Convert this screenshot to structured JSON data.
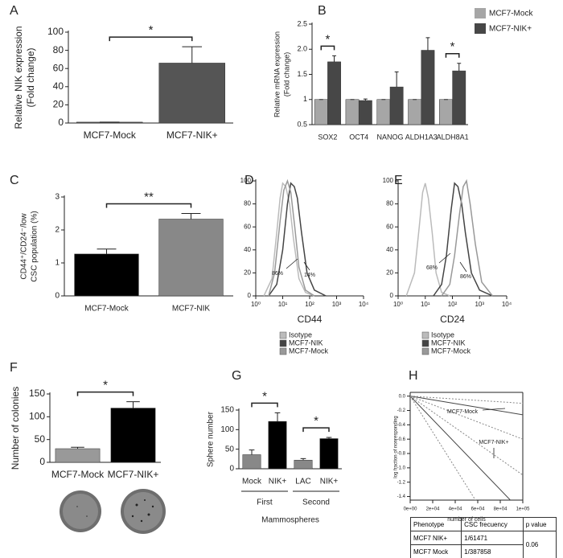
{
  "chart_data": [
    {
      "panel": "A",
      "type": "bar",
      "ylabel": [
        "Relative NIK expression",
        "(Fold change)"
      ],
      "categories": [
        "MCF7-Mock",
        "MCF7-NIK+"
      ],
      "series": [
        {
          "colors": [
            "#555555",
            "#555555"
          ],
          "values": [
            1,
            66
          ],
          "errors": [
            0,
            18
          ]
        }
      ],
      "ylim": [
        0,
        100
      ],
      "yticks": [
        0,
        20,
        40,
        60,
        80,
        100
      ],
      "annotations": [
        {
          "text": "*",
          "categories": [
            0,
            1
          ]
        }
      ]
    },
    {
      "panel": "B",
      "type": "bar",
      "ylabel": [
        "Relative mRNA expression",
        "(Fold change)"
      ],
      "categories": [
        "SOX2",
        "OCT4",
        "NANOG",
        "ALDH1A3",
        "ALDH8A1"
      ],
      "series": [
        {
          "name": "MCF7-Mock",
          "color": "#a6a6a6",
          "values": [
            1,
            1,
            1,
            1,
            1
          ],
          "errors": [
            0,
            0,
            0,
            0,
            0
          ]
        },
        {
          "name": "MCF7-NIK+",
          "color": "#474747",
          "values": [
            1.75,
            0.98,
            1.25,
            1.98,
            1.57
          ],
          "errors": [
            0.12,
            0.03,
            0.3,
            0.25,
            0.15
          ]
        }
      ],
      "ylim": [
        0.5,
        2.5
      ],
      "yticks": [
        0.5,
        1,
        1.5,
        {
          "value": 2,
          "label": "2.0"
        },
        2.5
      ],
      "annotations": [
        {
          "text": "*",
          "category": 0
        },
        {
          "text": "*",
          "category": 4
        }
      ]
    },
    {
      "panel": "C",
      "type": "bar",
      "ylabel": [
        "CD44⁺/CD24⁻/low",
        "CSC population (%)"
      ],
      "categories": [
        "MCF7-Mock",
        "MCF7-NIK"
      ],
      "series": [
        {
          "colors": [
            "#000000",
            "#888888"
          ],
          "values": [
            1.27,
            2.33
          ],
          "errors": [
            0.15,
            0.17
          ]
        }
      ],
      "ylim": [
        0,
        3
      ],
      "yticks": [
        0,
        1,
        2,
        3
      ],
      "annotations": [
        {
          "text": "**",
          "categories": [
            0,
            1
          ]
        }
      ]
    },
    {
      "panel": "D",
      "type": "line",
      "xscale": "log",
      "xlabel": "CD44",
      "series": [
        {
          "name": "Isotype",
          "color": "#bbbbbb",
          "x": [
            2,
            4,
            6,
            8,
            10,
            13,
            18,
            25,
            40,
            70,
            150
          ],
          "values": [
            0,
            15,
            55,
            85,
            98,
            95,
            80,
            50,
            15,
            3,
            0
          ]
        },
        {
          "name": "MCF7-NIK",
          "color": "#444444",
          "x": [
            3,
            6,
            10,
            15,
            20,
            27,
            35,
            50,
            80,
            150,
            400
          ],
          "values": [
            0,
            10,
            40,
            80,
            98,
            95,
            85,
            55,
            20,
            5,
            0
          ]
        },
        {
          "name": "MCF7-Mock",
          "color": "#999999",
          "x": [
            3,
            5,
            8,
            11,
            15,
            20,
            28,
            40,
            70,
            150
          ],
          "values": [
            0,
            20,
            65,
            92,
            100,
            90,
            60,
            25,
            5,
            0
          ]
        }
      ],
      "xlim": [
        1,
        10000
      ],
      "xticks": [
        {
          "value": 1,
          "label": "10⁰"
        },
        {
          "value": 10,
          "label": "10¹"
        },
        {
          "value": 100,
          "label": "10²"
        },
        {
          "value": 1000,
          "label": "10³"
        },
        {
          "value": 10000,
          "label": "10⁴"
        }
      ],
      "ylim": [
        0,
        100
      ],
      "yticks": [
        0,
        20,
        40,
        60,
        80,
        100
      ],
      "annotations": [
        "86%",
        "14%"
      ]
    },
    {
      "panel": "E",
      "type": "line",
      "xscale": "log",
      "xlabel": "CD24",
      "series": [
        {
          "name": "Isotype",
          "color": "#bbbbbb",
          "x": [
            2,
            4,
            6,
            8,
            10,
            13,
            18,
            25,
            40,
            80
          ],
          "values": [
            0,
            20,
            60,
            90,
            98,
            85,
            55,
            20,
            3,
            0
          ]
        },
        {
          "name": "MCF7-NIK",
          "color": "#444444",
          "x": [
            20,
            40,
            60,
            90,
            120,
            160,
            220,
            300,
            500,
            1000,
            3000
          ],
          "values": [
            0,
            10,
            35,
            75,
            98,
            95,
            80,
            55,
            20,
            5,
            0
          ]
        },
        {
          "name": "MCF7-Mock",
          "color": "#999999",
          "x": [
            40,
            80,
            120,
            180,
            250,
            330,
            450,
            700,
            1200,
            3000
          ],
          "values": [
            0,
            10,
            35,
            70,
            95,
            100,
            80,
            45,
            12,
            0
          ]
        }
      ],
      "xlim": [
        1,
        10000
      ],
      "xticks": [
        {
          "value": 1,
          "label": "10⁰"
        },
        {
          "value": 10,
          "label": "10¹"
        },
        {
          "value": 100,
          "label": "10²"
        },
        {
          "value": 1000,
          "label": "10³"
        },
        {
          "value": 10000,
          "label": "10⁴"
        }
      ],
      "ylim": [
        0,
        100
      ],
      "yticks": [
        0,
        20,
        40,
        60,
        80,
        100
      ],
      "annotations": [
        "68%",
        "86%"
      ]
    },
    {
      "panel": "F",
      "type": "bar",
      "ylabel": [
        "Number of colonies"
      ],
      "categories": [
        "MCF7-Mock",
        "MCF7-NIK+"
      ],
      "series": [
        {
          "colors": [
            "#999999",
            "#000000"
          ],
          "values": [
            30,
            119
          ],
          "errors": [
            3,
            14
          ]
        }
      ],
      "ylim": [
        0,
        150
      ],
      "yticks": [
        0,
        50,
        100,
        150
      ],
      "annotations": [
        {
          "text": "*",
          "categories": [
            0,
            1
          ]
        }
      ]
    },
    {
      "panel": "G",
      "type": "bar",
      "ylabel": [
        "Sphere number"
      ],
      "xlabel": "Mammospheres",
      "categories": [
        "Mock",
        "NIK+",
        "LAC",
        "NIK+"
      ],
      "series": [
        {
          "colors": [
            "#888888",
            "#000000",
            "#888888",
            "#000000"
          ],
          "values": [
            36,
            121,
            22,
            77
          ],
          "errors": [
            12,
            22,
            4,
            3
          ]
        }
      ],
      "groups": [
        {
          "name": "First",
          "categories": [
            0,
            1
          ]
        },
        {
          "name": "Second",
          "categories": [
            2,
            3
          ]
        }
      ],
      "ylim": [
        0,
        150
      ],
      "yticks": [
        0,
        50,
        100,
        150
      ],
      "annotations": [
        {
          "text": "*",
          "categories": [
            0,
            1
          ]
        },
        {
          "text": "*",
          "categories": [
            2,
            3
          ]
        }
      ]
    },
    {
      "panel": "H",
      "type": "line",
      "xscale": "linear",
      "ylabel": [
        "log fraction of nonresponding"
      ],
      "xlabel": "number of cells",
      "series": [
        {
          "color": "#444444",
          "style": "solid",
          "x": [
            0,
            100000
          ],
          "values": [
            0,
            -0.26
          ]
        },
        {
          "color": "#888888",
          "style": "dotted",
          "x": [
            0,
            100000
          ],
          "values": [
            0,
            -0.1
          ]
        },
        {
          "color": "#888888",
          "style": "dotted",
          "x": [
            0,
            100000
          ],
          "values": [
            0,
            -0.6
          ]
        },
        {
          "color": "#444444",
          "style": "solid",
          "x": [
            0,
            100000
          ],
          "values": [
            0,
            -1.63
          ]
        },
        {
          "color": "#888888",
          "style": "dotted",
          "x": [
            0,
            100000
          ],
          "values": [
            0,
            -1.1
          ]
        },
        {
          "color": "#888888",
          "style": "dotted",
          "x": [
            0,
            100000
          ],
          "values": [
            0,
            -2.5
          ]
        }
      ],
      "xlim": [
        0,
        100000
      ],
      "xticks": [
        {
          "value": 0,
          "label": "0e+00"
        },
        {
          "value": 20000,
          "label": "2e+04"
        },
        {
          "value": 40000,
          "label": "4e+04"
        },
        {
          "value": 60000,
          "label": "6e+04"
        },
        {
          "value": 80000,
          "label": "8e+04"
        },
        {
          "value": 100000,
          "label": "1e+05"
        }
      ],
      "ylim": [
        -1.45,
        0.03
      ],
      "yticks": [
        {
          "value": 0,
          "label": "0.0"
        },
        -0.2,
        -0.4,
        -0.6,
        -0.8,
        {
          "value": -1,
          "label": "-1.0"
        },
        -1.2,
        -1.4
      ],
      "annotations": [
        "MCF7-Mock",
        "MCF7-NIK+"
      ]
    }
  ],
  "table": {
    "header": [
      "Phenotype",
      "CSC frecuency",
      "p value"
    ],
    "rows": [
      [
        "MCF7 NIK+",
        "1/61471"
      ],
      [
        "MCF7 Mock",
        "1/387858"
      ]
    ],
    "p_value": "0.06"
  }
}
